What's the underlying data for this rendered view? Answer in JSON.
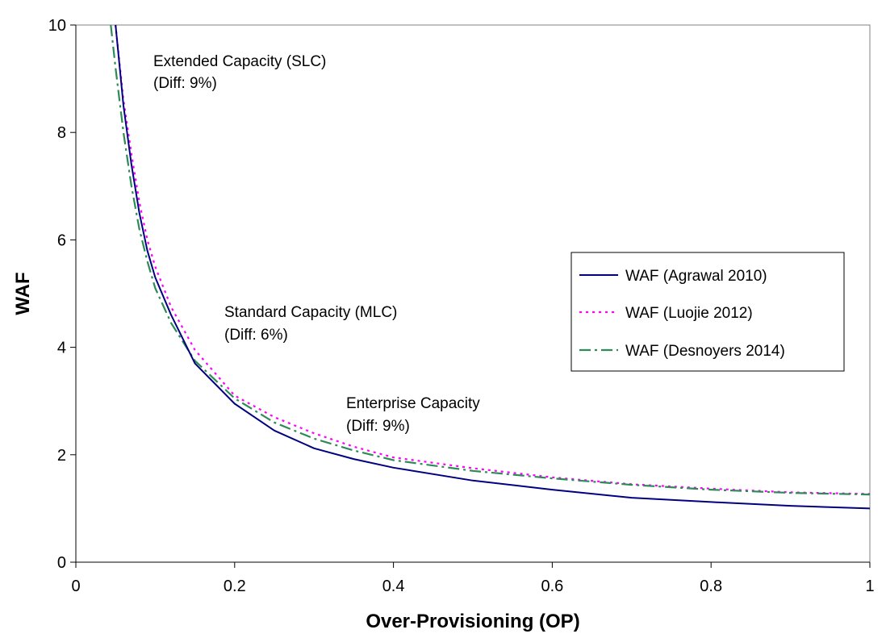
{
  "chart_data": {
    "type": "line",
    "title": "",
    "xlabel": "Over-Provisioning (OP)",
    "ylabel": "WAF",
    "xlim": [
      0,
      1
    ],
    "ylim": [
      0,
      10
    ],
    "xticks": [
      0,
      0.2,
      0.4,
      0.6,
      0.8,
      1
    ],
    "xtick_labels": [
      "0",
      "0.2",
      "0.4",
      "0.6",
      "0.8",
      "1"
    ],
    "yticks": [
      0,
      2,
      4,
      6,
      8,
      10
    ],
    "ytick_labels": [
      "0",
      "2",
      "4",
      "6",
      "8",
      "10"
    ],
    "grid": false,
    "legend_position": "center-right",
    "series": [
      {
        "name": "WAF (Agrawal 2010)",
        "color": "#000080",
        "style": "solid",
        "x": [
          0.05,
          0.06,
          0.07,
          0.08,
          0.09,
          0.1,
          0.12,
          0.15,
          0.2,
          0.25,
          0.3,
          0.35,
          0.4,
          0.5,
          0.6,
          0.7,
          0.8,
          0.9,
          1.0
        ],
        "y": [
          10.0,
          8.5,
          7.4,
          6.5,
          5.8,
          5.3,
          4.6,
          3.7,
          2.95,
          2.45,
          2.12,
          1.92,
          1.76,
          1.52,
          1.35,
          1.2,
          1.12,
          1.05,
          1.0
        ]
      },
      {
        "name": "WAF (Luojie 2012)",
        "color": "#ff00ff",
        "style": "dotted",
        "x": [
          0.05,
          0.06,
          0.07,
          0.08,
          0.09,
          0.1,
          0.12,
          0.15,
          0.2,
          0.25,
          0.3,
          0.35,
          0.4,
          0.5,
          0.6,
          0.7,
          0.8,
          0.9,
          1.0
        ],
        "y": [
          10.0,
          8.6,
          7.6,
          6.7,
          6.0,
          5.5,
          4.75,
          3.95,
          3.1,
          2.7,
          2.4,
          2.15,
          1.95,
          1.75,
          1.58,
          1.45,
          1.37,
          1.3,
          1.27
        ]
      },
      {
        "name": "WAF (Desnoyers 2014)",
        "color": "#2e8b57",
        "style": "dash-dot",
        "x": [
          0.044,
          0.05,
          0.06,
          0.07,
          0.08,
          0.09,
          0.1,
          0.12,
          0.15,
          0.2,
          0.25,
          0.3,
          0.35,
          0.4,
          0.5,
          0.6,
          0.7,
          0.8,
          0.9,
          1.0
        ],
        "y": [
          10.0,
          9.2,
          8.0,
          7.0,
          6.2,
          5.6,
          5.1,
          4.45,
          3.75,
          3.05,
          2.6,
          2.3,
          2.08,
          1.9,
          1.7,
          1.56,
          1.44,
          1.35,
          1.29,
          1.26
        ]
      }
    ],
    "annotations": [
      {
        "lines": [
          "Extended Capacity (SLC)",
          "(Diff: 9%)"
        ]
      },
      {
        "lines": [
          "Standard Capacity (MLC)",
          "(Diff: 6%)"
        ]
      },
      {
        "lines": [
          "Enterprise Capacity",
          "(Diff: 9%)"
        ]
      }
    ]
  }
}
